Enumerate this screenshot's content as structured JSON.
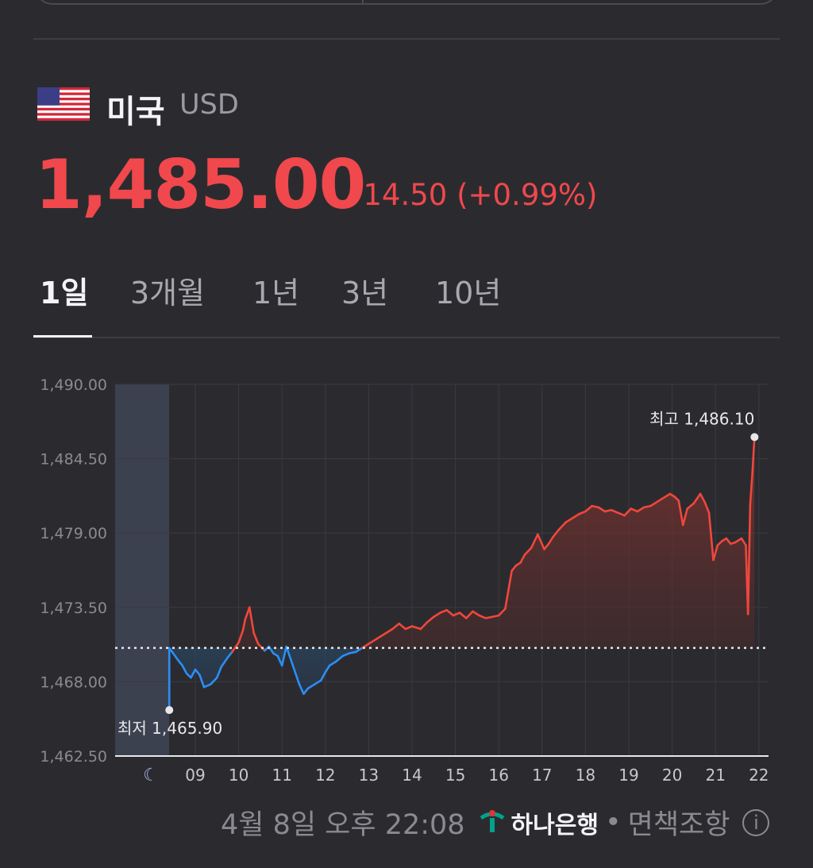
{
  "header": {
    "country": "미국",
    "currency": "USD",
    "price": "1,485.00",
    "change": "14.50 (+0.99%)",
    "flag_icon": "us-flag-icon"
  },
  "tabs": [
    {
      "label": "1일",
      "active": true
    },
    {
      "label": "3개월",
      "active": false
    },
    {
      "label": "1년",
      "active": false
    },
    {
      "label": "3년",
      "active": false
    },
    {
      "label": "10년",
      "active": false
    }
  ],
  "chart_data": {
    "type": "line",
    "ylim": [
      1462.5,
      1490.0
    ],
    "y_ticks": [
      "1,490.00",
      "1,484.50",
      "1,479.00",
      "1,473.50",
      "1,468.00",
      "1,462.50"
    ],
    "y_tick_values": [
      1490.0,
      1484.5,
      1479.0,
      1473.5,
      1468.0,
      1462.5
    ],
    "x_ticks": [
      "09",
      "10",
      "11",
      "12",
      "13",
      "14",
      "15",
      "16",
      "17",
      "18",
      "19",
      "20",
      "21",
      "22"
    ],
    "night_icon": "moon-icon",
    "reference_value": 1470.5,
    "high_label": "최고 1,486.10",
    "high_value": 1486.1,
    "low_label": "최저 1,465.90",
    "low_value": 1465.9,
    "x": [
      8.4,
      8.6,
      8.65,
      8.7,
      8.8,
      8.9,
      9.0,
      9.1,
      9.2,
      9.35,
      9.5,
      9.6,
      9.75,
      9.85,
      10.0,
      10.1,
      10.15,
      10.25,
      10.35,
      10.45,
      10.6,
      10.7,
      10.8,
      10.9,
      11.0,
      11.1,
      11.25,
      11.4,
      11.5,
      11.6,
      11.75,
      11.9,
      12.0,
      12.1,
      12.25,
      12.4,
      12.55,
      12.7,
      12.85,
      13.0,
      13.2,
      13.4,
      13.55,
      13.7,
      13.85,
      14.0,
      14.2,
      14.35,
      14.5,
      14.65,
      14.8,
      14.95,
      15.1,
      15.25,
      15.4,
      15.55,
      15.7,
      15.85,
      16.0,
      16.15,
      16.3,
      16.4,
      16.5,
      16.6,
      16.75,
      16.9,
      17.05,
      17.15,
      17.25,
      17.4,
      17.55,
      17.7,
      17.85,
      18.0,
      18.15,
      18.3,
      18.45,
      18.6,
      18.75,
      18.9,
      19.05,
      19.2,
      19.35,
      19.5,
      19.65,
      19.8,
      19.95,
      20.05,
      20.15,
      20.25,
      20.35,
      20.5,
      20.65,
      20.75,
      20.85,
      20.95,
      21.05,
      21.15,
      21.25,
      21.35,
      21.45,
      21.6,
      21.7,
      21.75,
      21.8,
      21.85,
      21.9
    ],
    "values": [
      1470.5,
      1469.6,
      1469.4,
      1469.2,
      1468.6,
      1468.3,
      1468.9,
      1468.5,
      1467.6,
      1467.8,
      1468.3,
      1469.1,
      1469.8,
      1470.2,
      1470.9,
      1471.8,
      1472.6,
      1473.5,
      1471.6,
      1470.8,
      1470.3,
      1470.6,
      1470.1,
      1469.9,
      1469.2,
      1470.6,
      1469.2,
      1467.8,
      1467.1,
      1467.5,
      1467.8,
      1468.1,
      1468.7,
      1469.2,
      1469.5,
      1469.9,
      1470.1,
      1470.2,
      1470.5,
      1470.8,
      1471.2,
      1471.6,
      1471.9,
      1472.3,
      1471.9,
      1472.1,
      1471.9,
      1472.4,
      1472.8,
      1473.1,
      1473.3,
      1472.9,
      1473.1,
      1472.7,
      1473.2,
      1472.9,
      1472.7,
      1472.8,
      1472.9,
      1473.4,
      1476.2,
      1476.6,
      1476.8,
      1477.4,
      1477.9,
      1478.9,
      1477.8,
      1478.2,
      1478.7,
      1479.3,
      1479.8,
      1480.1,
      1480.4,
      1480.6,
      1481.0,
      1480.9,
      1480.6,
      1480.7,
      1480.5,
      1480.3,
      1480.8,
      1480.6,
      1480.9,
      1481.0,
      1481.3,
      1481.6,
      1481.9,
      1481.7,
      1481.4,
      1479.6,
      1480.8,
      1481.2,
      1481.9,
      1481.3,
      1480.5,
      1477.0,
      1478.1,
      1478.4,
      1478.6,
      1478.2,
      1478.3,
      1478.6,
      1478.1,
      1473.0,
      1481.1,
      1483.4,
      1486.1
    ],
    "color_up": "#f0473c",
    "color_down": "#2a8ef5",
    "grid": true
  },
  "footer": {
    "timestamp": "4월 8일 오후 22:08",
    "bank": "하나은행",
    "separator": "•",
    "disclaimer": "면책조항",
    "info_icon": "info-icon",
    "bank_logo_icon": "hana-bank-logo-icon"
  }
}
